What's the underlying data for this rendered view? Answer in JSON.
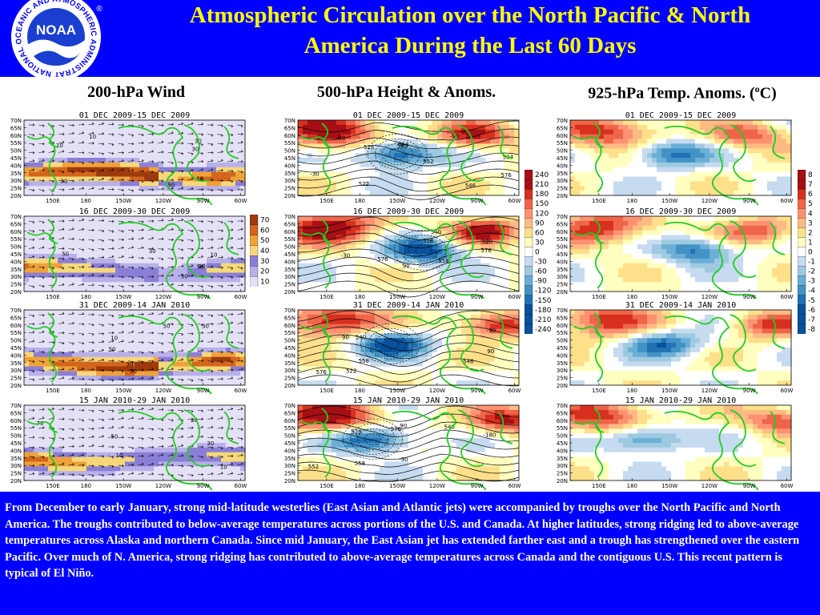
{
  "header": {
    "title_line1": "Atmospheric Circulation over the North Pacific & North",
    "title_line2": "America During the Last 60 Days",
    "logo_ring_text": "NATIONAL OCEANIC AND ATMOSPHERIC ADMINISTRATION",
    "logo_center": "NOAA",
    "logo_mark": "®",
    "colors": {
      "bg": "#0000ff",
      "title": "#ffff00"
    }
  },
  "columns": [
    {
      "id": "wind",
      "heading": "200-hPa Wind"
    },
    {
      "id": "height",
      "heading": "500-hPa Height & Anoms."
    },
    {
      "id": "temp",
      "heading_main": "925-hPa Temp. Anoms. (",
      "heading_sup": "o",
      "heading_end": "C)"
    }
  ],
  "periods": [
    "01 DEC 2009-15 DEC 2009",
    "16 DEC 2009-30 DEC 2009",
    "31 DEC 2009-14 JAN 2010",
    "15 JAN 2010-29 JAN 2010"
  ],
  "axes": {
    "lat_labels": [
      "70N",
      "65N",
      "60N",
      "55N",
      "50N",
      "45N",
      "40N",
      "35N",
      "30N",
      "25N",
      "20N"
    ],
    "lon_labels": [
      "150E",
      "180",
      "150W",
      "120W",
      "90W",
      "60W"
    ]
  },
  "contour_labels": {
    "wind": [
      [
        "10",
        "30",
        "50",
        "10",
        "30",
        "30",
        "10"
      ],
      [
        "10",
        "50",
        "30",
        "30",
        "50",
        "10"
      ],
      [
        "10",
        "30",
        "70",
        "50",
        "30",
        "50"
      ],
      [
        "10",
        "30",
        "50",
        "70",
        "30",
        "10"
      ]
    ],
    "height": [
      [
        "546",
        "-90",
        "576",
        "534",
        "522",
        "-90",
        "528",
        "552",
        "582",
        "-30",
        "564"
      ],
      [
        "576",
        "-30",
        "528",
        "540",
        "558",
        "90",
        "558",
        "576"
      ],
      [
        "-90",
        "522",
        "546",
        "558",
        "90",
        "540",
        "576",
        "90"
      ],
      [
        "-90",
        "528",
        "540",
        "-180",
        "558",
        "552",
        "576",
        "90"
      ]
    ]
  },
  "colorbars": {
    "wind": [
      "70",
      "60",
      "50",
      "40",
      "30",
      "20",
      "10"
    ],
    "height": [
      "240",
      "210",
      "180",
      "150",
      "120",
      "90",
      "60",
      "30",
      "0",
      "-30",
      "-60",
      "-90",
      "-120",
      "-150",
      "-180",
      "-210",
      "-240"
    ],
    "temp": [
      "8",
      "7",
      "6",
      "5",
      "4",
      "3",
      "2",
      "1",
      "0",
      "-1",
      "-2",
      "-3",
      "-4",
      "-5",
      "-6",
      "-7",
      "-8"
    ]
  },
  "description": "From December to early January, strong mid-latitude westerlies (East Asian and Atlantic jets) were accompanied by troughs over the North Pacific and North America.  The troughs contributed to below-average temperatures across portions of the U.S. and Canada.  At higher latitudes, strong ridging led to above-average temperatures across Alaska and northern Canada.  Since mid January, the East Asian jet has extended farther east and a trough has strengthened over the eastern Pacific.  Over much of N. America, strong ridging has contributed to above-average temperatures across Canada and the contiguous U.S.  This recent pattern is typical of El Niño.",
  "colors": {
    "wind_scale": [
      "#9d3a0e",
      "#d4651c",
      "#f0a23a",
      "#f6d87a",
      "#8a7fd6",
      "#b7b0ea",
      "#e4e1f7"
    ],
    "anom_warm": [
      "#a50f15",
      "#d7301f",
      "#ef6548",
      "#fc9272",
      "#fdbb84",
      "#fee08b",
      "#ffffbf"
    ],
    "anom_cold": [
      "#ffffff",
      "#c6dbef",
      "#9ecae1",
      "#6baed6",
      "#4292c6",
      "#2171b5",
      "#08519c"
    ],
    "coast": "#22cc22"
  }
}
